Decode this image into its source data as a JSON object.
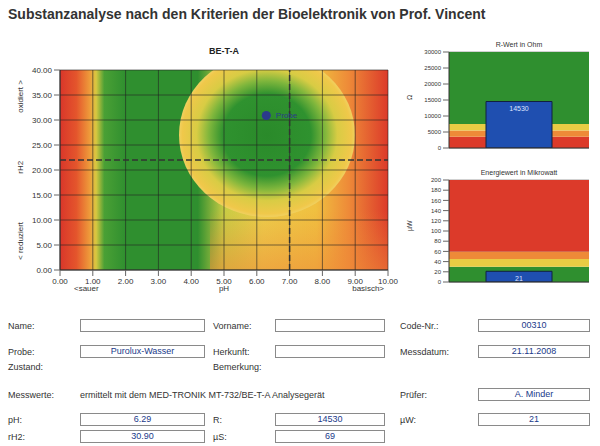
{
  "title": "Substanzanalyse nach den Kriterien der Bioelektronik von Prof. Vincent",
  "chart_data": [
    {
      "type": "scatter",
      "title": "BE-T-A",
      "x_label": "pH",
      "y_label": "rH2",
      "annotations": {
        "x_low": "<sauer",
        "x_high": "basisch>",
        "y_low": "< reduziert",
        "y_high": "oxidiert >"
      },
      "points": [
        {
          "name": "Probe",
          "x": 6.29,
          "y": 30.9
        }
      ],
      "color": "#2b3a8c",
      "marker": "circle",
      "xlim": [
        0,
        10
      ],
      "xticks": [
        {
          "value": 0,
          "label": "0.00"
        },
        {
          "value": 1,
          "label": "1.00"
        },
        {
          "value": 2,
          "label": "2.00"
        },
        {
          "value": 3,
          "label": "3.00"
        },
        {
          "value": 4,
          "label": "4.00"
        },
        {
          "value": 5,
          "label": "5.00"
        },
        {
          "value": 6,
          "label": "6.00"
        },
        {
          "value": 7,
          "label": "7.00"
        },
        {
          "value": 8,
          "label": "8.00"
        },
        {
          "value": 9,
          "label": "9.00"
        },
        {
          "value": 10,
          "label": "10.00"
        }
      ],
      "ylim": [
        0,
        40
      ],
      "yticks": [
        {
          "value": 0,
          "label": "0.00"
        },
        {
          "value": 5,
          "label": "5.00"
        },
        {
          "value": 10,
          "label": "10.00"
        },
        {
          "value": 15,
          "label": "15.00"
        },
        {
          "value": 20,
          "label": "20.00"
        },
        {
          "value": 25,
          "label": "25.00"
        },
        {
          "value": 30,
          "label": "30.00"
        },
        {
          "value": 35,
          "label": "35.00"
        },
        {
          "value": 40,
          "label": "40.00"
        }
      ],
      "grid": true,
      "reference_lines": {
        "x": [
          7
        ],
        "y": [
          22
        ],
        "line_style": "dashed"
      }
    },
    {
      "type": "bar",
      "title": "R-Wert in Ohm",
      "y_label": "Ω",
      "categories": [
        null
      ],
      "values": [
        14530
      ],
      "color": "#1f4fb0",
      "ylim": [
        0,
        30000
      ],
      "yticks": [
        0,
        5000,
        10000,
        15000,
        20000,
        25000,
        30000
      ],
      "grid": true,
      "data_labels": true,
      "tick_labels": "y",
      "bands": [
        {
          "from": 0,
          "to": 3500,
          "color": "#dc3a2a"
        },
        {
          "from": 3500,
          "to": 5500,
          "color": "#ee8a38"
        },
        {
          "from": 5500,
          "to": 7500,
          "color": "#e8cc44"
        },
        {
          "from": 7500,
          "to": 30000,
          "color": "#2f8f2f"
        }
      ]
    },
    {
      "type": "bar",
      "title": "Energiewert in Mikrowatt",
      "y_label": "µW",
      "categories": [
        null
      ],
      "values": [
        21
      ],
      "color": "#1f4fb0",
      "ylim": [
        0,
        200
      ],
      "yticks": [
        0,
        20,
        40,
        60,
        80,
        100,
        120,
        140,
        160,
        180,
        200
      ],
      "grid": true,
      "data_labels": true,
      "tick_labels": "y",
      "bands": [
        {
          "from": 0,
          "to": 30,
          "color": "#2f8f2f"
        },
        {
          "from": 30,
          "to": 45,
          "color": "#e8cc44"
        },
        {
          "from": 45,
          "to": 60,
          "color": "#ee8a38"
        },
        {
          "from": 60,
          "to": 200,
          "color": "#dc3a2a"
        }
      ]
    }
  ],
  "form": {
    "rows": [
      [
        {
          "label": "Name:",
          "value": null
        },
        {
          "label": "Vorname:",
          "value": null
        },
        {
          "label": "Code-Nr.:",
          "value": "00310"
        }
      ],
      [
        {
          "label": "Probe:",
          "value": "Purolux-Wasser"
        },
        {
          "label": "Herkunft:",
          "value": null
        },
        {
          "label": "Messdatum:",
          "value": "21.11.2008"
        }
      ],
      [
        {
          "label": "Zustand:"
        },
        {
          "label": "Bemerkung:"
        },
        null
      ],
      [
        {
          "label": "Messwerte:",
          "text": "ermittelt mit dem MED-TRONIK MT-732/BE-T-A Analysegerät"
        },
        null,
        {
          "label": "Prüfer:",
          "value": "A. Minder"
        }
      ],
      [
        {
          "label": "pH:",
          "value": "6.29"
        },
        {
          "label": "R:",
          "value": "14530"
        },
        {
          "label": "µW:",
          "value": "21"
        }
      ],
      [
        {
          "label": "rH2:",
          "value": "30.90"
        },
        {
          "label": "µS:",
          "value": "69"
        },
        null
      ]
    ]
  }
}
